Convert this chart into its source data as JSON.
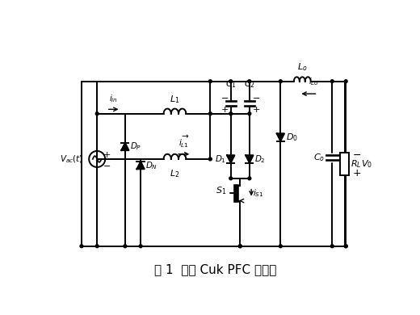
{
  "title": "图 1  无桥 Cuk PFC 变换器",
  "title_fontsize": 11,
  "line_color": "#000000",
  "bg_color": "#ffffff",
  "lw": 1.4,
  "fig_width": 5.2,
  "fig_height": 3.9,
  "dpi": 100
}
